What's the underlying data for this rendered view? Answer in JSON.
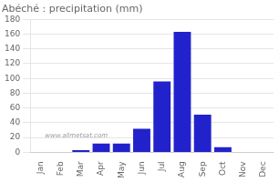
{
  "chart_data": {
    "type": "bar",
    "title": "Abéché : precipitation (mm)",
    "categories": [
      "Jan",
      "Feb",
      "Mar",
      "Apr",
      "May",
      "Jun",
      "Jul",
      "Aug",
      "Sep",
      "Oct",
      "Nov",
      "Dec"
    ],
    "values": [
      0,
      0,
      3,
      12,
      12,
      32,
      96,
      163,
      51,
      7,
      0,
      0
    ],
    "color": "#2222cc",
    "ylim": [
      0,
      180
    ],
    "yticks": [
      0,
      20,
      40,
      60,
      80,
      100,
      120,
      140,
      160,
      180
    ],
    "grid": true,
    "annotation": "www.allmetsat.com"
  }
}
